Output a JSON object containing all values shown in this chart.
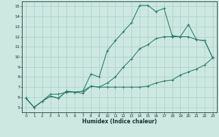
{
  "title": "",
  "xlabel": "Humidex (Indice chaleur)",
  "ylabel": "",
  "bg_color": "#cce8e0",
  "line_color": "#2e7b6b",
  "grid_color": "#a8cfc7",
  "xlim": [
    -0.5,
    23.5
  ],
  "ylim": [
    4.5,
    15.5
  ],
  "xticks": [
    0,
    1,
    2,
    3,
    4,
    5,
    6,
    7,
    8,
    9,
    10,
    11,
    12,
    13,
    14,
    15,
    16,
    17,
    18,
    19,
    20,
    21,
    22,
    23
  ],
  "yticks": [
    5,
    6,
    7,
    8,
    9,
    10,
    11,
    12,
    13,
    14,
    15
  ],
  "lines": [
    [
      0,
      5.9,
      1,
      5.0,
      2,
      5.6,
      3,
      6.3,
      4,
      6.3,
      5,
      6.5,
      6,
      6.5,
      7,
      6.6,
      8,
      8.3,
      9,
      8.0,
      10,
      10.6,
      11,
      11.6,
      12,
      12.5,
      13,
      13.4,
      14,
      15.1,
      15,
      15.1,
      16,
      14.5,
      17,
      14.8,
      18,
      12.1,
      19,
      12.0,
      20,
      13.2,
      21,
      11.7,
      22,
      11.6,
      23,
      9.9
    ],
    [
      0,
      5.9,
      1,
      5.0,
      2,
      5.6,
      3,
      6.1,
      4,
      5.9,
      5,
      6.6,
      6,
      6.5,
      7,
      6.6,
      8,
      7.1,
      9,
      7.0,
      10,
      7.0,
      11,
      7.0,
      12,
      7.0,
      13,
      7.0,
      14,
      7.0,
      15,
      7.1,
      16,
      7.4,
      17,
      7.6,
      18,
      7.7,
      19,
      8.2,
      20,
      8.5,
      21,
      8.8,
      22,
      9.2,
      23,
      9.9
    ],
    [
      0,
      5.9,
      1,
      5.0,
      2,
      5.6,
      3,
      6.1,
      4,
      5.9,
      5,
      6.6,
      6,
      6.5,
      7,
      6.4,
      8,
      7.1,
      9,
      7.0,
      10,
      7.4,
      11,
      8.0,
      12,
      9.0,
      13,
      9.8,
      14,
      10.8,
      15,
      11.2,
      16,
      11.8,
      17,
      12.0,
      18,
      12.0,
      19,
      12.0,
      20,
      12.0,
      21,
      11.7,
      22,
      11.6,
      23,
      9.9
    ]
  ]
}
